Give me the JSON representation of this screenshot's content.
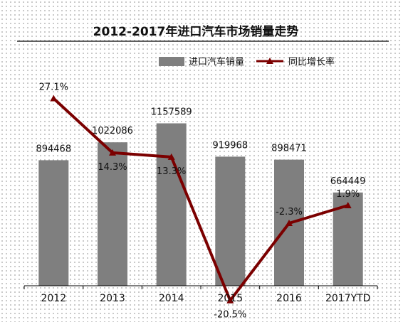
{
  "chart_data": {
    "type": "bar",
    "title": "2012-2017年进口汽车市场销量走势",
    "categories": [
      "2012",
      "2013",
      "2014",
      "2015",
      "2016",
      "2017YTD"
    ],
    "series": [
      {
        "name": "进口汽车销量",
        "type": "bar",
        "color": "#7f7f7f",
        "values": [
          894468,
          1022086,
          1157589,
          919968,
          898471,
          664449
        ]
      },
      {
        "name": "同比增长率",
        "type": "line",
        "color": "#7b0000",
        "marker": "triangle",
        "values": [
          27.1,
          14.3,
          13.3,
          -20.5,
          -2.3,
          1.9
        ],
        "labels": [
          "27.1%",
          "14.3%",
          "13.3%",
          "-20.5%",
          "-2.3%",
          "1.9%"
        ]
      }
    ],
    "legend_position": "top-right",
    "grid": false
  }
}
